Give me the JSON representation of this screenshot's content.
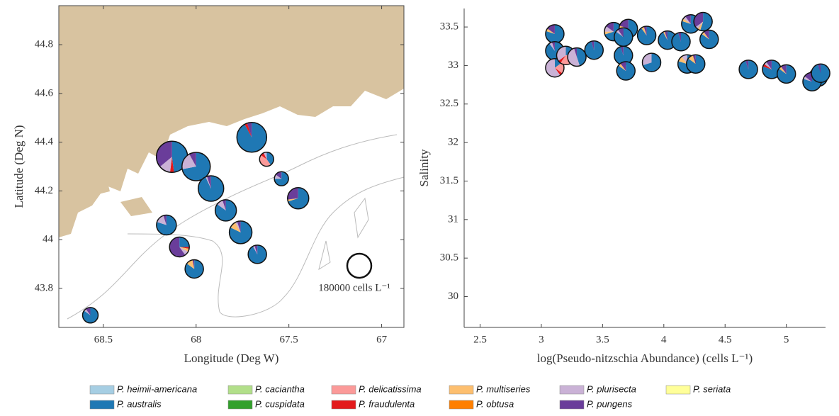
{
  "legend": [
    {
      "name": "P. heimii-americana",
      "color": "#a6cee3"
    },
    {
      "name": "P. australis",
      "color": "#1f78b4"
    },
    {
      "name": "P. caciantha",
      "color": "#b2df8a"
    },
    {
      "name": "P. cuspidata",
      "color": "#33a02c"
    },
    {
      "name": "P. delicatissima",
      "color": "#fb9a99"
    },
    {
      "name": "P. fraudulenta",
      "color": "#e31a1c"
    },
    {
      "name": "P. multiseries",
      "color": "#fdbf6f"
    },
    {
      "name": "P. obtusa",
      "color": "#ff7f00"
    },
    {
      "name": "P. plurisecta",
      "color": "#cab2d6"
    },
    {
      "name": "P. pungens",
      "color": "#6a3d9a"
    },
    {
      "name": "P. seriata",
      "color": "#ffff99"
    }
  ],
  "chart_data": [
    {
      "type": "map-pie",
      "x_label": "Longitude (Deg W)",
      "y_label": "Latitude (Deg N)",
      "xlim": [
        68.74,
        66.88
      ],
      "ylim": [
        43.64,
        44.96
      ],
      "xticks": [
        68.5,
        68,
        67.5,
        67
      ],
      "yticks": [
        43.8,
        44,
        44.2,
        44.4,
        44.6,
        44.8
      ],
      "size_ref": 180000,
      "size_label": "180000 cells L⁻¹",
      "pies": [
        {
          "lon": 68.13,
          "lat": 44.34,
          "abundance": 301000,
          "values": [
            0,
            48,
            0,
            0,
            0,
            4,
            0,
            0,
            12,
            36,
            0
          ]
        },
        {
          "lon": 68.0,
          "lat": 44.3,
          "abundance": 249000,
          "values": [
            0,
            72,
            0,
            0,
            0,
            0,
            0,
            0,
            20,
            8,
            0
          ]
        },
        {
          "lon": 67.92,
          "lat": 44.21,
          "abundance": 202000,
          "values": [
            0,
            93,
            0,
            0,
            0,
            0,
            0,
            0,
            2,
            5,
            0
          ]
        },
        {
          "lon": 67.7,
          "lat": 44.42,
          "abundance": 275000,
          "values": [
            0,
            92,
            0,
            0,
            0,
            3,
            0,
            0,
            0,
            5,
            0
          ]
        },
        {
          "lon": 67.62,
          "lat": 44.33,
          "abundance": 62000,
          "values": [
            0,
            40,
            0,
            0,
            45,
            8,
            0,
            0,
            7,
            0,
            0
          ]
        },
        {
          "lon": 67.54,
          "lat": 44.25,
          "abundance": 62000,
          "values": [
            0,
            75,
            0,
            0,
            0,
            0,
            0,
            0,
            10,
            15,
            0
          ]
        },
        {
          "lon": 67.45,
          "lat": 44.17,
          "abundance": 140000,
          "values": [
            0,
            70,
            0,
            0,
            0,
            0,
            3,
            0,
            0,
            27,
            0
          ]
        },
        {
          "lon": 67.84,
          "lat": 44.12,
          "abundance": 140000,
          "values": [
            0,
            85,
            0,
            0,
            0,
            0,
            0,
            0,
            10,
            5,
            0
          ]
        },
        {
          "lon": 68.16,
          "lat": 44.06,
          "abundance": 122000,
          "values": [
            0,
            80,
            0,
            0,
            0,
            0,
            0,
            0,
            15,
            5,
            0
          ]
        },
        {
          "lon": 67.76,
          "lat": 44.03,
          "abundance": 159000,
          "values": [
            0,
            82,
            0,
            0,
            0,
            0,
            10,
            0,
            3,
            5,
            0
          ]
        },
        {
          "lon": 68.09,
          "lat": 43.97,
          "abundance": 122000,
          "values": [
            0,
            25,
            0,
            0,
            0,
            3,
            5,
            0,
            7,
            60,
            0
          ]
        },
        {
          "lon": 67.67,
          "lat": 43.94,
          "abundance": 105000,
          "values": [
            0,
            92,
            0,
            0,
            0,
            0,
            0,
            0,
            3,
            5,
            0
          ]
        },
        {
          "lon": 68.01,
          "lat": 43.88,
          "abundance": 105000,
          "values": [
            0,
            85,
            0,
            0,
            0,
            0,
            12,
            0,
            0,
            3,
            0
          ]
        },
        {
          "lon": 68.57,
          "lat": 43.69,
          "abundance": 75000,
          "values": [
            0,
            85,
            0,
            0,
            0,
            0,
            0,
            0,
            5,
            10,
            0
          ]
        }
      ]
    },
    {
      "type": "scatter-pie",
      "x_label": "log(Pseudo-nitzschia Abundance) (cells L⁻¹)",
      "y_label": "Salinity",
      "xlim": [
        2.37,
        5.32
      ],
      "ylim": [
        29.6,
        33.74
      ],
      "xticks": [
        2.5,
        3,
        3.5,
        4,
        4.5,
        5
      ],
      "yticks": [
        30,
        30.5,
        31,
        31.5,
        32,
        32.5,
        33,
        33.5
      ],
      "pies": [
        {
          "x": 3.11,
          "y": 33.41,
          "values": [
            0,
            80,
            0,
            0,
            0,
            0,
            5,
            0,
            0,
            15,
            0
          ]
        },
        {
          "x": 3.11,
          "y": 33.19,
          "values": [
            0,
            90,
            0,
            0,
            0,
            0,
            0,
            0,
            5,
            5,
            0
          ]
        },
        {
          "x": 3.11,
          "y": 32.97,
          "values": [
            0,
            15,
            0,
            0,
            20,
            5,
            0,
            0,
            60,
            0,
            0
          ]
        },
        {
          "x": 3.2,
          "y": 33.13,
          "values": [
            0,
            20,
            0,
            0,
            40,
            5,
            0,
            0,
            35,
            0,
            0
          ]
        },
        {
          "x": 3.29,
          "y": 33.11,
          "values": [
            0,
            45,
            0,
            0,
            0,
            0,
            0,
            0,
            50,
            5,
            0
          ]
        },
        {
          "x": 3.43,
          "y": 33.2,
          "values": [
            0,
            95,
            0,
            0,
            0,
            0,
            0,
            0,
            0,
            5,
            0
          ]
        },
        {
          "x": 3.59,
          "y": 33.44,
          "values": [
            0,
            70,
            0,
            0,
            0,
            0,
            5,
            0,
            10,
            15,
            0
          ]
        },
        {
          "x": 3.71,
          "y": 33.48,
          "values": [
            0,
            75,
            0,
            0,
            0,
            0,
            5,
            0,
            0,
            20,
            0
          ]
        },
        {
          "x": 3.67,
          "y": 33.37,
          "values": [
            0,
            85,
            0,
            0,
            0,
            0,
            0,
            0,
            5,
            10,
            0
          ]
        },
        {
          "x": 3.67,
          "y": 33.13,
          "values": [
            0,
            95,
            0,
            0,
            0,
            0,
            0,
            0,
            0,
            5,
            0
          ]
        },
        {
          "x": 3.69,
          "y": 32.93,
          "values": [
            0,
            85,
            0,
            0,
            0,
            0,
            5,
            0,
            0,
            10,
            0
          ]
        },
        {
          "x": 3.86,
          "y": 33.39,
          "values": [
            0,
            90,
            0,
            0,
            0,
            0,
            5,
            0,
            0,
            5,
            0
          ]
        },
        {
          "x": 3.9,
          "y": 33.04,
          "values": [
            0,
            70,
            0,
            0,
            0,
            0,
            0,
            0,
            30,
            0,
            0
          ]
        },
        {
          "x": 4.03,
          "y": 33.33,
          "values": [
            0,
            92,
            0,
            0,
            0,
            0,
            3,
            0,
            0,
            5,
            0
          ]
        },
        {
          "x": 4.14,
          "y": 33.31,
          "values": [
            0,
            95,
            0,
            0,
            0,
            0,
            0,
            0,
            0,
            5,
            0
          ]
        },
        {
          "x": 4.22,
          "y": 33.54,
          "values": [
            0,
            80,
            0,
            0,
            0,
            0,
            5,
            0,
            5,
            10,
            0
          ]
        },
        {
          "x": 4.32,
          "y": 33.57,
          "values": [
            0,
            55,
            0,
            0,
            0,
            0,
            5,
            0,
            5,
            35,
            0
          ]
        },
        {
          "x": 4.37,
          "y": 33.34,
          "values": [
            0,
            85,
            0,
            0,
            0,
            0,
            5,
            0,
            0,
            10,
            0
          ]
        },
        {
          "x": 4.19,
          "y": 33.02,
          "values": [
            0,
            80,
            0,
            0,
            0,
            0,
            10,
            0,
            10,
            0,
            0
          ]
        },
        {
          "x": 4.26,
          "y": 33.02,
          "values": [
            0,
            85,
            0,
            0,
            0,
            0,
            10,
            0,
            0,
            5,
            0
          ]
        },
        {
          "x": 4.69,
          "y": 32.95,
          "values": [
            0,
            95,
            0,
            0,
            0,
            0,
            0,
            0,
            0,
            5,
            0
          ]
        },
        {
          "x": 4.88,
          "y": 32.95,
          "values": [
            0,
            80,
            0,
            0,
            0,
            5,
            0,
            0,
            5,
            10,
            0
          ]
        },
        {
          "x": 5.0,
          "y": 32.89,
          "values": [
            0,
            85,
            0,
            0,
            0,
            0,
            5,
            0,
            0,
            10,
            0
          ]
        },
        {
          "x": 5.26,
          "y": 32.85,
          "values": [
            0,
            90,
            0,
            0,
            0,
            0,
            5,
            0,
            0,
            5,
            0
          ]
        },
        {
          "x": 5.21,
          "y": 32.79,
          "values": [
            0,
            80,
            0,
            0,
            0,
            0,
            0,
            0,
            5,
            15,
            0
          ]
        },
        {
          "x": 5.28,
          "y": 32.9,
          "values": [
            0,
            95,
            0,
            0,
            0,
            0,
            0,
            0,
            0,
            5,
            0
          ]
        }
      ]
    }
  ]
}
